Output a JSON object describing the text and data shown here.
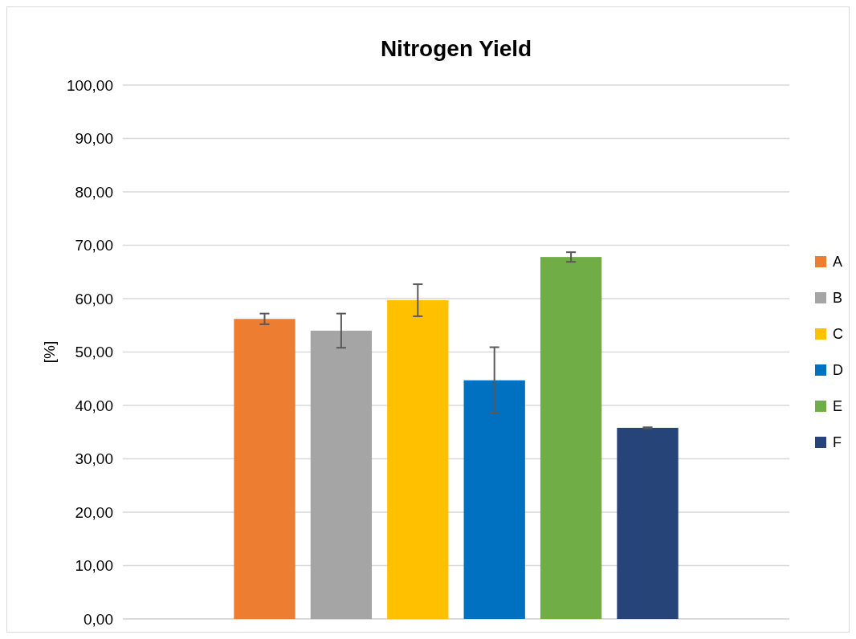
{
  "chart_data": {
    "type": "bar",
    "title": "Nitrogen Yield",
    "ylabel": "[%]",
    "categories": [
      null
    ],
    "series": [
      {
        "name": "A",
        "color": "#ed7d31",
        "values": [
          56.2
        ],
        "errors": [
          1.0
        ]
      },
      {
        "name": "B",
        "color": "#a5a5a5",
        "values": [
          54.0
        ],
        "errors": [
          3.2
        ]
      },
      {
        "name": "C",
        "color": "#ffc000",
        "values": [
          59.7
        ],
        "errors": [
          3.0
        ]
      },
      {
        "name": "D",
        "color": "#0070c0",
        "values": [
          44.7
        ],
        "errors": [
          6.2
        ]
      },
      {
        "name": "E",
        "color": "#70ad47",
        "values": [
          67.8
        ],
        "errors": [
          0.9
        ]
      },
      {
        "name": "F",
        "color": "#264478",
        "values": [
          35.8
        ],
        "errors": [
          0.1
        ]
      }
    ],
    "ylim": [
      0,
      100
    ],
    "yticks": [
      {
        "value": 0,
        "label": "0,00"
      },
      {
        "value": 10,
        "label": "10,00"
      },
      {
        "value": 20,
        "label": "20,00"
      },
      {
        "value": 30,
        "label": "30,00"
      },
      {
        "value": 40,
        "label": "40,00"
      },
      {
        "value": 50,
        "label": "50,00"
      },
      {
        "value": 60,
        "label": "60,00"
      },
      {
        "value": 70,
        "label": "70,00"
      },
      {
        "value": 80,
        "label": "80,00"
      },
      {
        "value": 90,
        "label": "90,00"
      },
      {
        "value": 100,
        "label": "100,00"
      }
    ],
    "grid": "y",
    "legend": "right"
  }
}
